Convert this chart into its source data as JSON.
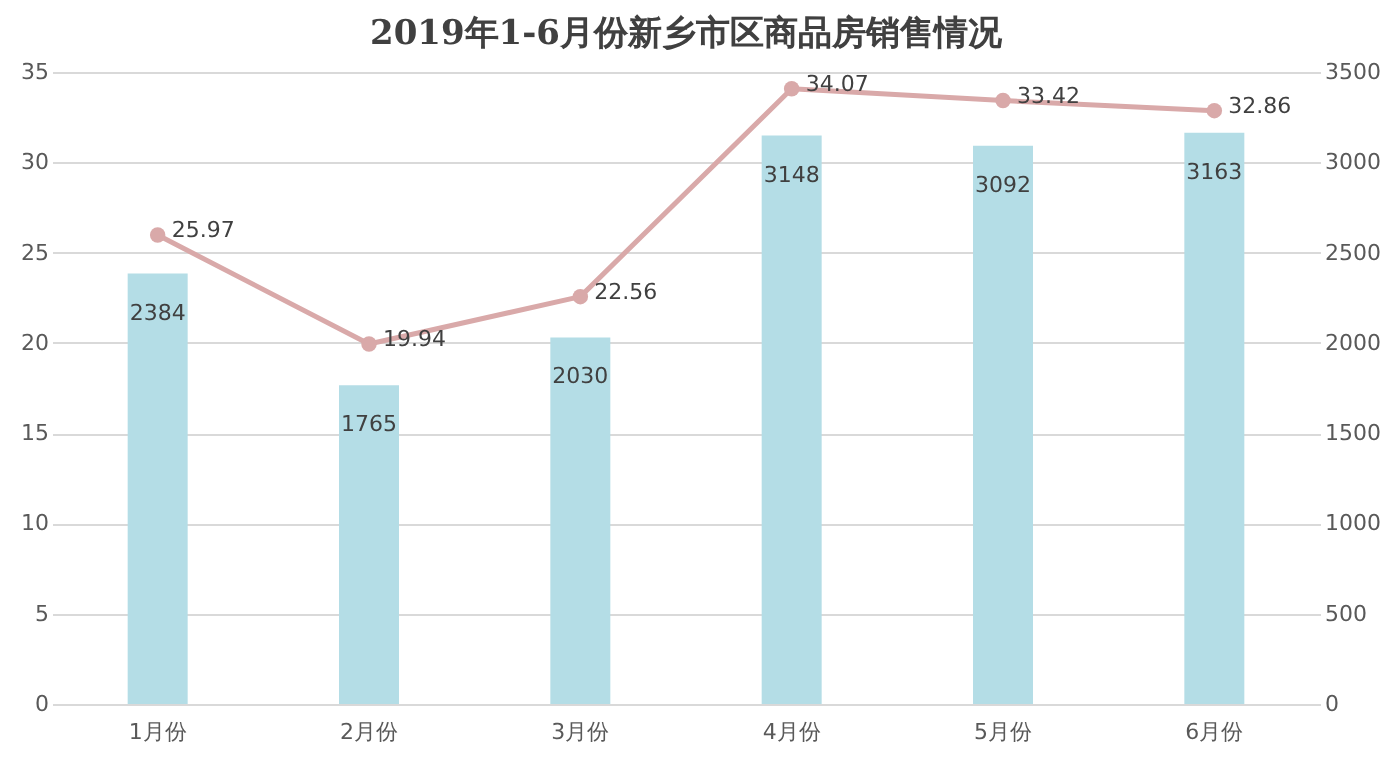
{
  "chart_data": {
    "type": "bar",
    "title": "2019年1-6月份新乡市区商品房销售情况",
    "categories": [
      "1月份",
      "2月份",
      "3月份",
      "4月份",
      "5月份",
      "6月份"
    ],
    "series": [
      {
        "axis": "y2",
        "color": "#b4dde6",
        "values": [
          2384,
          1765,
          2030,
          3148,
          3092,
          3163
        ]
      },
      {
        "type": "line",
        "color": "#d9a9a9",
        "values": [
          25.97,
          19.94,
          22.56,
          34.07,
          33.42,
          32.86
        ]
      }
    ],
    "ylim": [
      0,
      35
    ],
    "yticks": [
      0,
      5,
      10,
      15,
      20,
      25,
      30,
      35
    ],
    "y2lim": [
      0,
      3500
    ],
    "y2ticks": [
      0,
      500,
      1000,
      1500,
      2000,
      2500,
      3000,
      3500
    ],
    "data_labels": true,
    "marker": "circle",
    "grid": "y",
    "line_style": "solid"
  }
}
